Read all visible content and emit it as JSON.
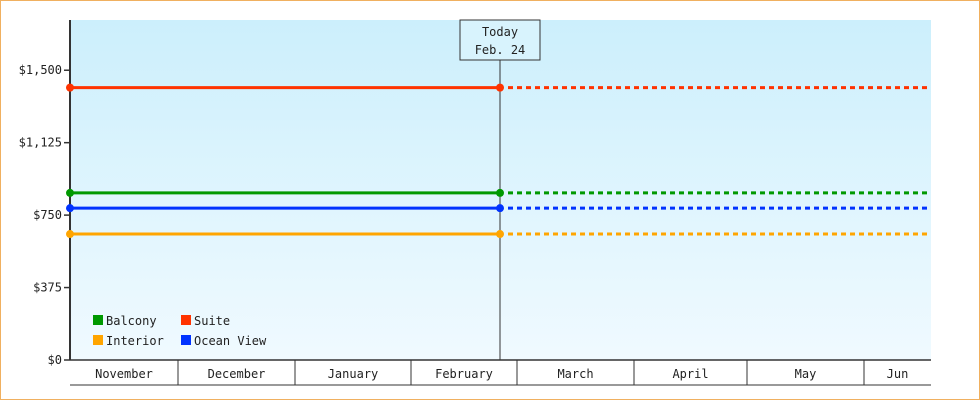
{
  "chart_data": {
    "type": "line",
    "title": "",
    "xlabel": "",
    "ylabel": "",
    "ylim": [
      0,
      1760
    ],
    "yticks": [
      0,
      375,
      750,
      1125,
      1500
    ],
    "ytick_labels": [
      "$0",
      "$375",
      "$750",
      "$1,125",
      "$1,500"
    ],
    "categories": [
      "November",
      "December",
      "January",
      "February",
      "March",
      "April",
      "May",
      "Jun"
    ],
    "today_marker": {
      "line1": "Today",
      "line2": "Feb. 24"
    },
    "legend_placement": "bottom-left",
    "grid": false,
    "series": [
      {
        "name": "Balcony",
        "color": "#009900",
        "value": 865,
        "style_past": "solid",
        "style_future": "dotted"
      },
      {
        "name": "Suite",
        "color": "#ff3300",
        "value": 1410,
        "style_past": "solid",
        "style_future": "dotted"
      },
      {
        "name": "Interior",
        "color": "#ffa500",
        "value": 652,
        "style_past": "solid",
        "style_future": "dotted"
      },
      {
        "name": "Ocean View",
        "color": "#0033ff",
        "value": 786,
        "style_past": "solid",
        "style_future": "dotted"
      }
    ],
    "background_gradient": [
      "#cceffc",
      "#f0faff"
    ]
  }
}
